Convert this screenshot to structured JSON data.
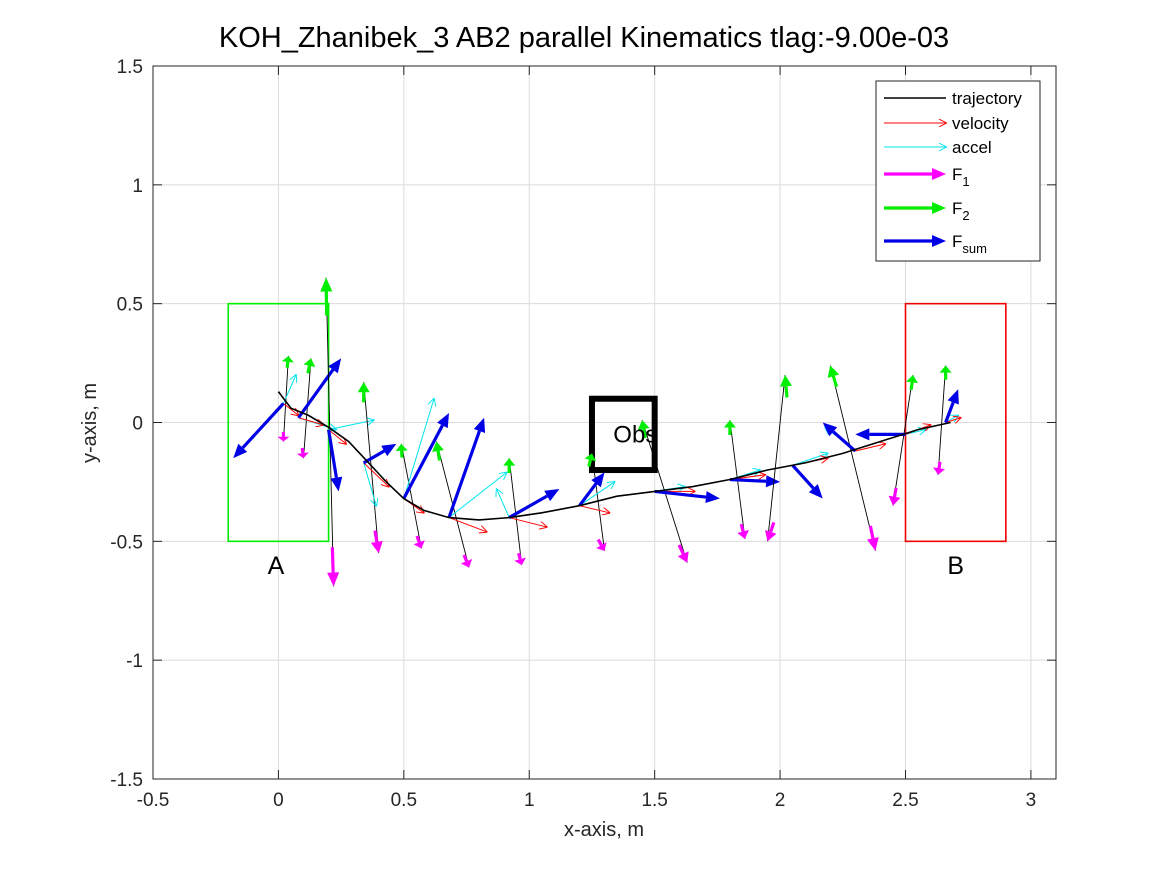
{
  "chart_data": {
    "type": "line",
    "title": "KOH_Zhanibek_3    AB2    parallel    Kinematics tlag:-9.00e-03",
    "xlabel": "x-axis, m",
    "ylabel": "y-axis, m",
    "xlim": [
      -0.5,
      3.1
    ],
    "ylim": [
      -1.5,
      1.5
    ],
    "xticks": [
      -0.5,
      0,
      0.5,
      1,
      1.5,
      2,
      2.5,
      3
    ],
    "xtick_labels": [
      "-0.5",
      "0",
      "0.5",
      "1",
      "1.5",
      "2",
      "2.5",
      "3"
    ],
    "yticks": [
      -1.5,
      -1,
      -0.5,
      0,
      0.5,
      1,
      1.5
    ],
    "ytick_labels": [
      "-1.5",
      "-1",
      "-0.5",
      "0",
      "0.5",
      "1",
      "1.5"
    ],
    "grid": true,
    "legend_position": "top-right",
    "legend": [
      {
        "label": "trajectory",
        "sub": "",
        "color": "#000000",
        "style": "line"
      },
      {
        "label": "velocity",
        "sub": "",
        "color": "#ff0000",
        "style": "arrow-thin"
      },
      {
        "label": "accel",
        "sub": "",
        "color": "#00e5ee",
        "style": "arrow-thin"
      },
      {
        "label": "F",
        "sub": "1",
        "color": "#ff00ff",
        "style": "arrow-thick"
      },
      {
        "label": "F",
        "sub": "2",
        "color": "#00ee00",
        "style": "arrow-thick"
      },
      {
        "label": "F",
        "sub": "sum",
        "color": "#0000e6",
        "style": "arrow-thick"
      }
    ],
    "regions": [
      {
        "label": "A",
        "x": [
          -0.2,
          0.2
        ],
        "y": [
          -0.5,
          0.5
        ],
        "color": "#00ee00",
        "label_pos": [
          -0.01,
          -0.6
        ]
      },
      {
        "label": "B",
        "x": [
          2.5,
          2.9
        ],
        "y": [
          -0.5,
          0.5
        ],
        "color": "#ee0000",
        "label_pos": [
          2.7,
          -0.6
        ]
      }
    ],
    "obstacle": {
      "label": "Obs",
      "x": [
        1.25,
        1.5
      ],
      "y": [
        -0.2,
        0.1
      ],
      "color": "#000000"
    },
    "trajectory": [
      [
        0.0,
        0.13
      ],
      [
        0.05,
        0.06
      ],
      [
        0.12,
        0.03
      ],
      [
        0.2,
        -0.02
      ],
      [
        0.28,
        -0.08
      ],
      [
        0.36,
        -0.17
      ],
      [
        0.43,
        -0.25
      ],
      [
        0.5,
        -0.32
      ],
      [
        0.58,
        -0.37
      ],
      [
        0.68,
        -0.4
      ],
      [
        0.8,
        -0.41
      ],
      [
        0.92,
        -0.4
      ],
      [
        1.05,
        -0.38
      ],
      [
        1.2,
        -0.35
      ],
      [
        1.35,
        -0.31
      ],
      [
        1.5,
        -0.29
      ],
      [
        1.65,
        -0.27
      ],
      [
        1.8,
        -0.24
      ],
      [
        1.95,
        -0.2
      ],
      [
        2.1,
        -0.17
      ],
      [
        2.25,
        -0.13
      ],
      [
        2.4,
        -0.08
      ],
      [
        2.55,
        -0.03
      ],
      [
        2.68,
        0.0
      ]
    ],
    "sample_points": [
      {
        "p": [
          0.02,
          0.08
        ],
        "v": [
          0.06,
          -0.05
        ],
        "a": [
          0.05,
          0.12
        ],
        "f1": [
          0.0,
          -0.16
        ],
        "f2": [
          0.02,
          0.2
        ],
        "fs": [
          -0.2,
          -0.23
        ]
      },
      {
        "p": [
          0.08,
          0.02
        ],
        "v": [
          0.1,
          -0.03
        ],
        "a": [
          0.15,
          -0.05
        ],
        "f1": [
          0.02,
          -0.17
        ],
        "f2": [
          0.05,
          0.25
        ],
        "fs": [
          0.17,
          0.25
        ]
      },
      {
        "p": [
          0.2,
          -0.03
        ],
        "v": [
          0.07,
          -0.06
        ],
        "a": [
          0.18,
          0.04
        ],
        "f1": [
          0.02,
          -0.66
        ],
        "f2": [
          -0.01,
          0.64
        ],
        "fs": [
          0.04,
          -0.26
        ]
      },
      {
        "p": [
          0.34,
          -0.17
        ],
        "v": [
          0.1,
          -0.1
        ],
        "a": [
          0.05,
          -0.18
        ],
        "f1": [
          0.06,
          -0.38
        ],
        "f2": [
          0.0,
          0.34
        ],
        "fs": [
          0.13,
          0.08
        ]
      },
      {
        "p": [
          0.5,
          -0.32
        ],
        "v": [
          0.08,
          -0.06
        ],
        "a": [
          0.12,
          0.42
        ],
        "f1": [
          0.07,
          -0.21
        ],
        "f2": [
          -0.01,
          0.23
        ],
        "fs": [
          0.18,
          0.36
        ]
      },
      {
        "p": [
          0.68,
          -0.4
        ],
        "v": [
          0.15,
          -0.06
        ],
        "a": [
          0.23,
          0.19
        ],
        "f1": [
          0.08,
          -0.21
        ],
        "f2": [
          -0.05,
          0.32
        ],
        "fs": [
          0.14,
          0.42
        ]
      },
      {
        "p": [
          0.92,
          -0.4
        ],
        "v": [
          0.15,
          -0.04
        ],
        "a": [
          -0.05,
          0.12
        ],
        "f1": [
          0.05,
          -0.2
        ],
        "f2": [
          0.0,
          0.25
        ],
        "fs": [
          0.2,
          0.12
        ]
      },
      {
        "p": [
          1.2,
          -0.35
        ],
        "v": [
          0.12,
          -0.03
        ],
        "a": [
          0.14,
          0.1
        ],
        "f1": [
          0.1,
          -0.19
        ],
        "f2": [
          0.05,
          0.22
        ],
        "fs": [
          0.1,
          0.14
        ]
      },
      {
        "p": [
          1.5,
          -0.29
        ],
        "v": [
          0.16,
          0.0
        ],
        "a": [
          0.12,
          0.02
        ],
        "f1": [
          0.13,
          -0.3
        ],
        "f2": [
          -0.05,
          0.3
        ],
        "fs": [
          0.26,
          -0.03
        ]
      },
      {
        "p": [
          1.8,
          -0.24
        ],
        "v": [
          0.14,
          0.02
        ],
        "a": [
          0.12,
          0.04
        ],
        "f1": [
          0.06,
          -0.25
        ],
        "f2": [
          0.0,
          0.25
        ],
        "fs": [
          0.2,
          -0.01
        ]
      },
      {
        "p": [
          2.05,
          -0.18
        ],
        "v": [
          0.14,
          0.03
        ],
        "a": [
          0.14,
          0.05
        ],
        "f1": [
          -0.1,
          -0.32
        ],
        "f2": [
          -0.03,
          0.38
        ],
        "fs": [
          0.12,
          -0.14
        ]
      },
      {
        "p": [
          2.3,
          -0.12
        ],
        "v": [
          0.12,
          0.03
        ],
        "a": [
          -0.12,
          0.1
        ],
        "f1": [
          0.08,
          -0.42
        ],
        "f2": [
          -0.1,
          0.36
        ],
        "fs": [
          -0.13,
          0.12
        ]
      },
      {
        "p": [
          2.5,
          -0.05
        ],
        "v": [
          0.1,
          0.04
        ],
        "a": [
          0.08,
          0.02
        ],
        "f1": [
          -0.05,
          -0.3
        ],
        "f2": [
          0.03,
          0.25
        ],
        "fs": [
          -0.2,
          0.0
        ]
      },
      {
        "p": [
          2.66,
          0.0
        ],
        "v": [
          0.06,
          0.02
        ],
        "a": [
          0.05,
          0.03
        ],
        "f1": [
          -0.03,
          -0.22
        ],
        "f2": [
          0.0,
          0.24
        ],
        "fs": [
          0.05,
          0.14
        ]
      }
    ]
  }
}
